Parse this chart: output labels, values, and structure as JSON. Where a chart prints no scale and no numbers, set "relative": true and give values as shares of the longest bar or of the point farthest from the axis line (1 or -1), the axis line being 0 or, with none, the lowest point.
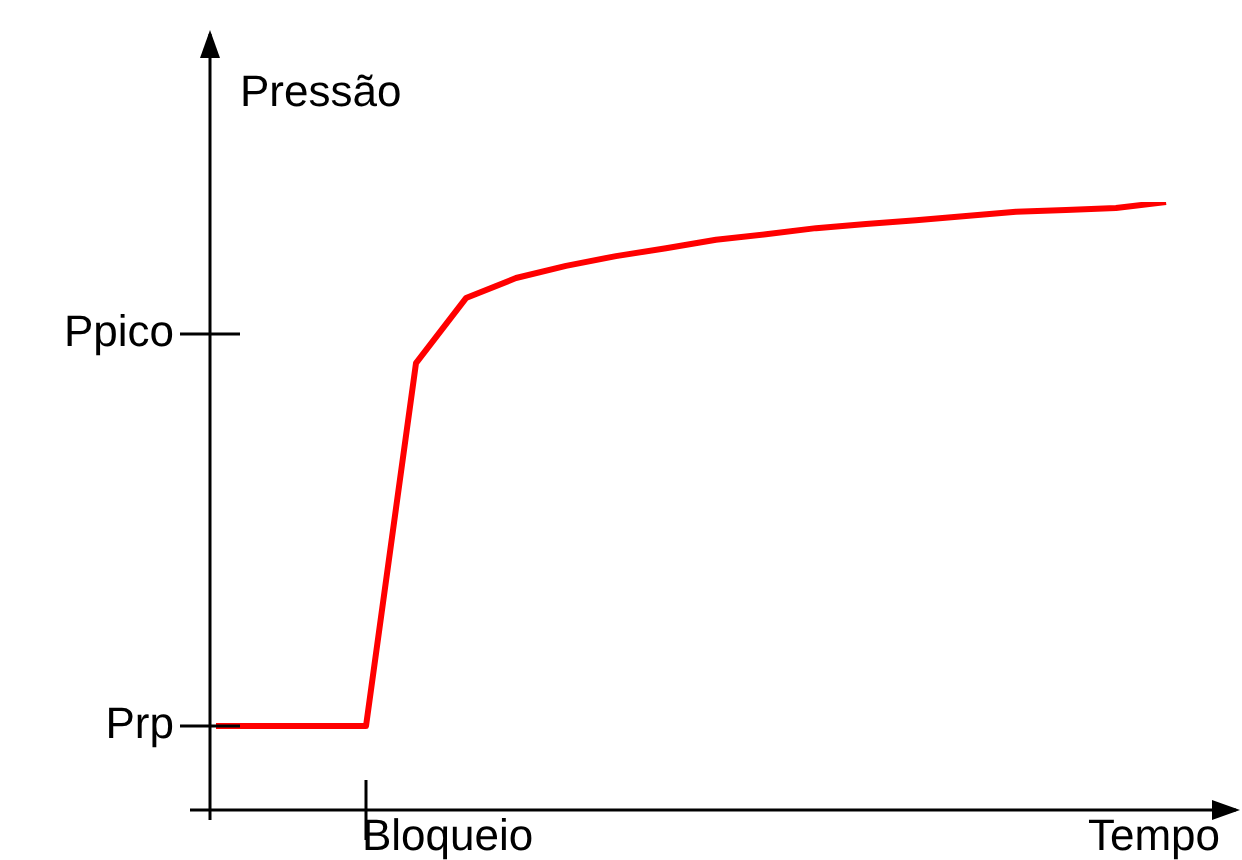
{
  "chart_data": {
    "type": "line",
    "relative": true,
    "xlabel": "Tempo",
    "ylabel": "Pressão",
    "categories": [
      null,
      null,
      null,
      null,
      null,
      null,
      null,
      null,
      null,
      null,
      null,
      null,
      null,
      null,
      null,
      null,
      null,
      null,
      null,
      null
    ],
    "series": [
      {
        "color": "#ff0000",
        "values": [
          0.138,
          0.138,
          0.138,
          0.138,
          0.735,
          0.842,
          0.875,
          0.895,
          0.911,
          0.924,
          0.938,
          0.947,
          0.957,
          0.964,
          0.97,
          0.977,
          0.984,
          0.987,
          0.99,
          1
        ]
      }
    ],
    "ref_lines": [
      {
        "axis": "y",
        "value": 0.138,
        "label": "Prp"
      },
      {
        "axis": "y",
        "value": 0.783,
        "label": "Ppico"
      }
    ],
    "annotations": [
      "Bloqueio"
    ],
    "grid": false,
    "legend": false,
    "marker": "none",
    "line_style": "solid"
  }
}
